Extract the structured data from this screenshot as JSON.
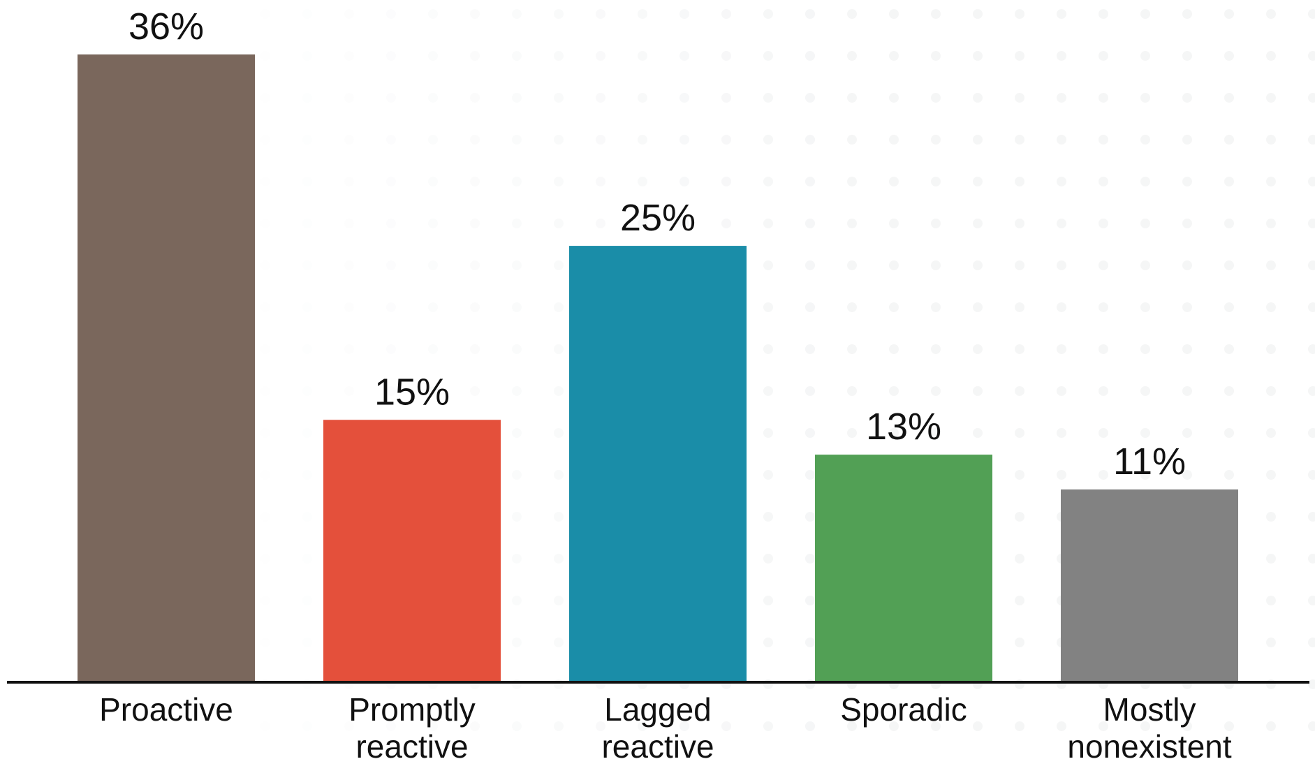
{
  "chart_data": {
    "type": "bar",
    "title": "",
    "xlabel": "",
    "ylabel": "",
    "categories": [
      [
        "Proactive"
      ],
      [
        "Promptly",
        "reactive"
      ],
      [
        "Lagged",
        "reactive"
      ],
      [
        "Sporadic"
      ],
      [
        "Mostly",
        "nonexistent"
      ]
    ],
    "values": [
      36,
      15,
      25,
      13,
      11
    ],
    "value_labels": [
      "36%",
      "15%",
      "25%",
      "13%",
      "11%"
    ],
    "unit": "%",
    "ylim": [
      0,
      36
    ],
    "grid": false,
    "legend": "none",
    "colors": [
      "#7a675c",
      "#e4503b",
      "#1a8da8",
      "#52a055",
      "#828282"
    ],
    "axis_color": "#111111",
    "background_pattern": "faint-dot-grid"
  }
}
